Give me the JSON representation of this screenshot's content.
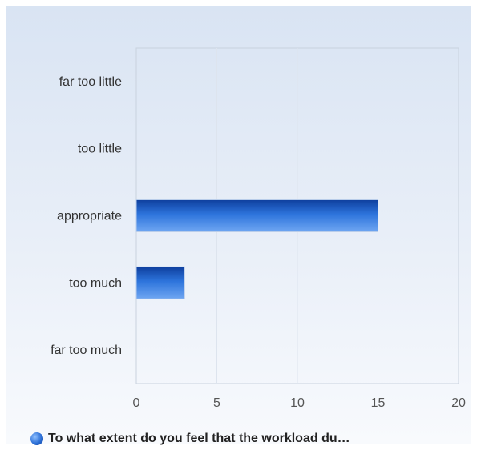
{
  "chart_data": {
    "type": "bar",
    "orientation": "horizontal",
    "categories": [
      "far too little",
      "too little",
      "appropriate",
      "too much",
      "far too much"
    ],
    "series": [
      {
        "name": "To what extent do you feel that the workload du…",
        "values": [
          0,
          0,
          15,
          3,
          0
        ],
        "color": "#1f5fc9"
      }
    ],
    "xlim": [
      0,
      20
    ],
    "x_ticks": [
      0,
      5,
      10,
      15,
      20
    ],
    "grid": true,
    "legend_position": "bottom"
  },
  "colors": {
    "bar_dark": "#0e3f9e",
    "bar_light": "#6fa6f2",
    "grid": "#dde4ee",
    "axis": "#c9d2de"
  }
}
